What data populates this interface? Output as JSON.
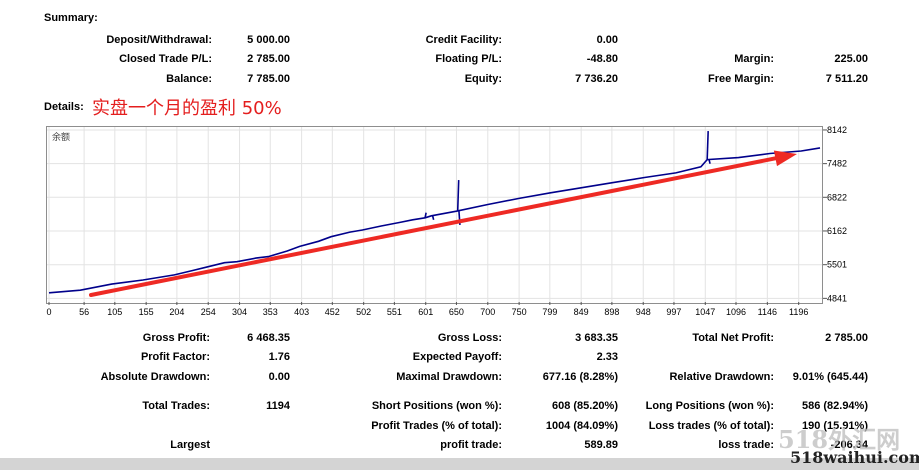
{
  "summary": {
    "title": "Summary:",
    "deposit_label": "Deposit/Withdrawal:",
    "deposit_value": "5 000.00",
    "credit_label": "Credit Facility:",
    "credit_value": "0.00",
    "closed_label": "Closed Trade P/L:",
    "closed_value": "2 785.00",
    "floating_label": "Floating P/L:",
    "floating_value": "-48.80",
    "margin_label": "Margin:",
    "margin_value": "225.00",
    "balance_label": "Balance:",
    "balance_value": "7 785.00",
    "equity_label": "Equity:",
    "equity_value": "7 736.20",
    "free_margin_label": "Free Margin:",
    "free_margin_value": "7 511.20"
  },
  "details": {
    "title": "Details:",
    "annotation": "实盘一个月的盈利 50%"
  },
  "chart_data": {
    "type": "line",
    "legend_text": "余额",
    "x_ticks": [
      0,
      56,
      105,
      155,
      204,
      254,
      304,
      353,
      403,
      452,
      502,
      551,
      601,
      650,
      700,
      750,
      799,
      849,
      898,
      948,
      997,
      1047,
      1096,
      1146,
      1196
    ],
    "y_ticks": [
      8142,
      7482,
      6822,
      6162,
      5501,
      4841
    ],
    "xlim": [
      0,
      1230
    ],
    "ylim": [
      4750,
      8200
    ],
    "line_color": "#00008b",
    "arrow_color": "#ee2a24",
    "series": [
      {
        "values": [
          [
            0,
            4950
          ],
          [
            50,
            5000
          ],
          [
            100,
            5120
          ],
          [
            150,
            5200
          ],
          [
            200,
            5300
          ],
          [
            230,
            5390
          ],
          [
            250,
            5450
          ],
          [
            280,
            5540
          ],
          [
            300,
            5560
          ],
          [
            330,
            5630
          ],
          [
            350,
            5660
          ],
          [
            380,
            5770
          ],
          [
            400,
            5860
          ],
          [
            430,
            5960
          ],
          [
            450,
            6050
          ],
          [
            480,
            6140
          ],
          [
            500,
            6180
          ],
          [
            530,
            6260
          ],
          [
            560,
            6330
          ],
          [
            580,
            6380
          ],
          [
            600,
            6420
          ],
          [
            610,
            6460
          ],
          [
            650,
            6550
          ],
          [
            700,
            6680
          ],
          [
            750,
            6800
          ],
          [
            800,
            6910
          ],
          [
            850,
            7010
          ],
          [
            900,
            7110
          ],
          [
            950,
            7210
          ],
          [
            1000,
            7300
          ],
          [
            1040,
            7420
          ],
          [
            1050,
            7560
          ],
          [
            1100,
            7600
          ],
          [
            1150,
            7680
          ],
          [
            1200,
            7730
          ],
          [
            1230,
            7790
          ]
        ]
      }
    ],
    "spikes": [
      [
        600,
        6520
      ],
      [
        612,
        6380
      ],
      [
        652,
        7160
      ],
      [
        654,
        6280
      ],
      [
        1050,
        8120
      ],
      [
        1053,
        7480
      ]
    ]
  },
  "stats": {
    "gross_profit_label": "Gross Profit:",
    "gross_profit_value": "6 468.35",
    "gross_loss_label": "Gross Loss:",
    "gross_loss_value": "3 683.35",
    "total_net_label": "Total Net Profit:",
    "total_net_value": "2 785.00",
    "profit_factor_label": "Profit Factor:",
    "profit_factor_value": "1.76",
    "expected_payoff_label": "Expected Payoff:",
    "expected_payoff_value": "2.33",
    "abs_dd_label": "Absolute Drawdown:",
    "abs_dd_value": "0.00",
    "max_dd_label": "Maximal Drawdown:",
    "max_dd_value": "677.16 (8.28%)",
    "rel_dd_label": "Relative Drawdown:",
    "rel_dd_value": "9.01% (645.44)",
    "total_trades_label": "Total Trades:",
    "total_trades_value": "1194",
    "short_label": "Short Positions (won %):",
    "short_value": "608 (85.20%)",
    "long_label": "Long Positions (won %):",
    "long_value": "586 (82.94%)",
    "profit_trades_label": "Profit Trades (% of total):",
    "profit_trades_value": "1004 (84.09%)",
    "loss_trades_label": "Loss trades (% of total):",
    "loss_trades_value": "190 (15.91%)",
    "largest_label": "Largest",
    "largest_profit_label": "profit trade:",
    "largest_profit_value": "589.89",
    "largest_loss_label": "loss trade:",
    "largest_loss_value": "-206.34"
  },
  "watermark": {
    "text1": "518外汇网",
    "text2": "518waihui.com"
  }
}
